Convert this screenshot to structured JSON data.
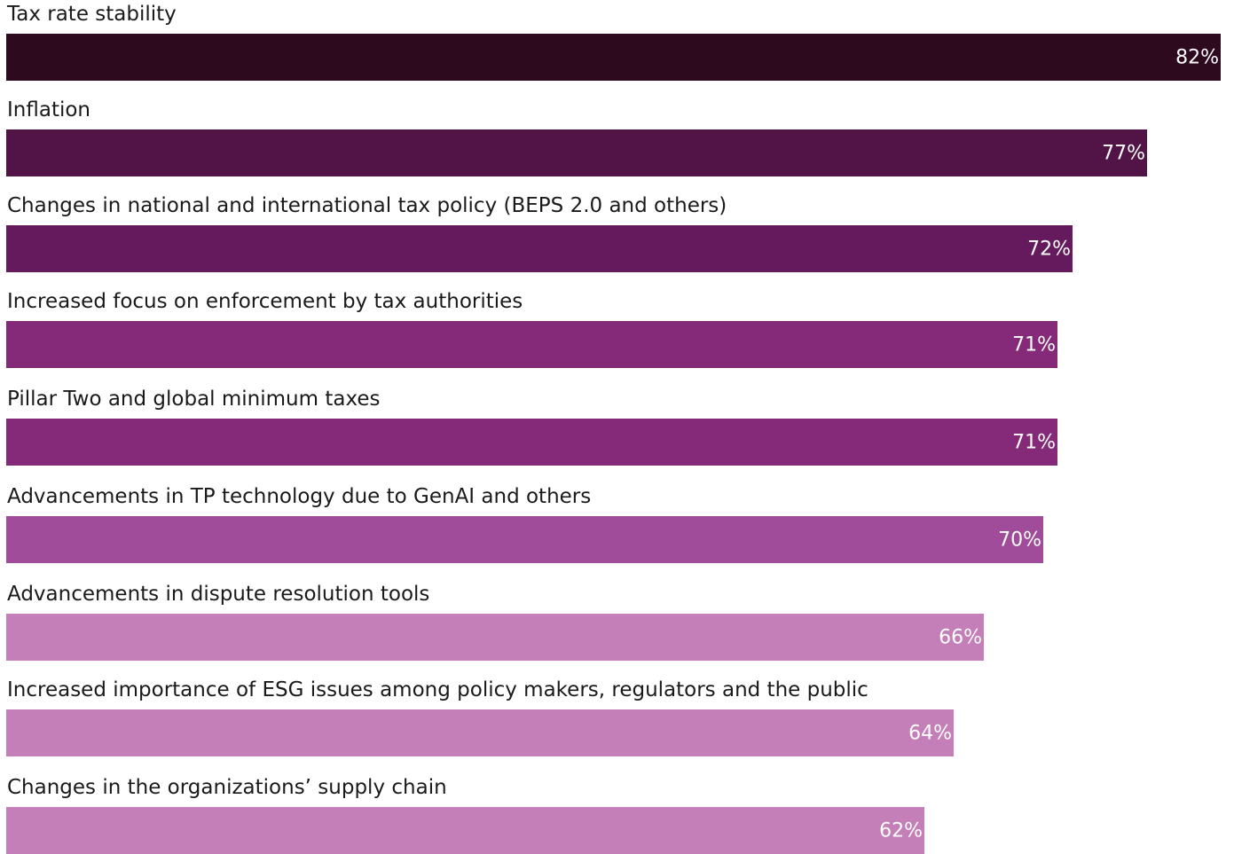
{
  "chart_data": {
    "type": "bar",
    "orientation": "horizontal",
    "categories": [
      "Tax rate stability",
      "Inflation",
      "Changes in national and international tax policy (BEPS 2.0 and others)",
      "Increased focus on enforcement by tax authorities",
      "Pillar Two and global minimum taxes",
      "Advancements in TP technology due to GenAI and others",
      "Advancements in dispute resolution tools",
      "Increased importance of ESG issues among policy makers, regulators and the public",
      "Changes in the organizations’ supply chain"
    ],
    "values": [
      82,
      77,
      72,
      71,
      71,
      70,
      66,
      64,
      62
    ],
    "value_labels": [
      "82%",
      "77%",
      "72%",
      "71%",
      "71%",
      "70%",
      "66%",
      "64%",
      "62%"
    ],
    "colors": [
      "#2e0a1e",
      "#521446",
      "#661a5e",
      "#852a79",
      "#852a79",
      "#a04c9a",
      "#c47fb8",
      "#c47fb8",
      "#c47fb8"
    ],
    "unit": "%",
    "xlim": [
      0,
      82
    ],
    "grid": false,
    "legend": "none"
  }
}
